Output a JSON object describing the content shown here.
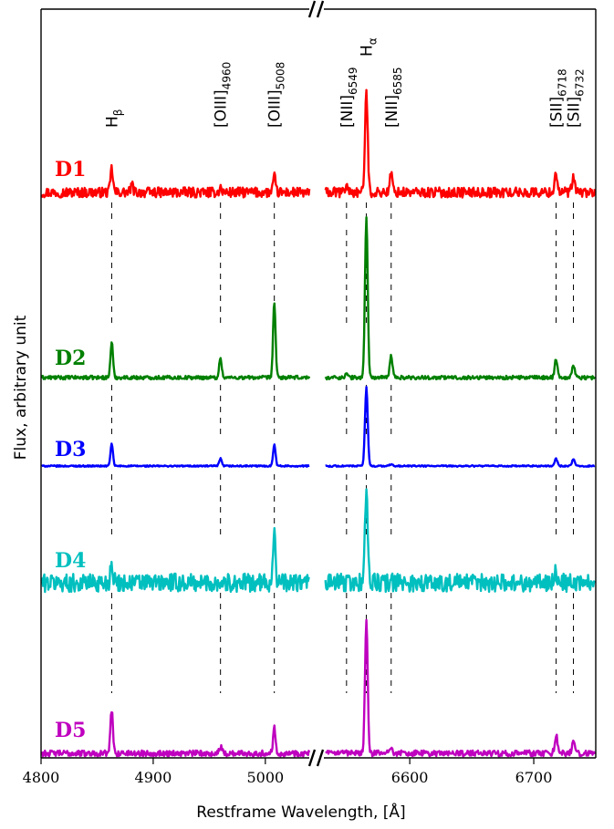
{
  "chart_data": {
    "type": "line",
    "xlabel": "Restframe Wavelength, [Å]",
    "ylabel": "Flux, arbitrary unit",
    "axis_break": true,
    "xlim_left": [
      4800,
      5040
    ],
    "xlim_right": [
      6530,
      6750
    ],
    "xticks": [
      {
        "value": 4800,
        "label": "4800"
      },
      {
        "value": 4900,
        "label": "4900"
      },
      {
        "value": 5000,
        "label": "5000"
      },
      {
        "value": 6600,
        "label": "6600"
      },
      {
        "value": 6700,
        "label": "6700"
      }
    ],
    "emission_lines": [
      {
        "name": "Hβ",
        "label_main": "H",
        "label_sub": "β",
        "wavelength": 4863
      },
      {
        "name": "[OIII]4960",
        "label_main": "[OIII]",
        "label_sub": "4960",
        "wavelength": 4960
      },
      {
        "name": "[OIII]5008",
        "label_main": "[OIII]",
        "label_sub": "5008",
        "wavelength": 5008
      },
      {
        "name": "[NII]6549",
        "label_main": "[NII]",
        "label_sub": "6549",
        "wavelength": 6549
      },
      {
        "name": "Hα",
        "label_main": "H",
        "label_sub": "α",
        "wavelength": 6565
      },
      {
        "name": "[NII]6585",
        "label_main": "[NII]",
        "label_sub": "6585",
        "wavelength": 6585
      },
      {
        "name": "[SII]6718",
        "label_main": "[SII]",
        "label_sub": "6718",
        "wavelength": 6718
      },
      {
        "name": "[SII]6732",
        "label_main": "[SII]",
        "label_sub": "6732",
        "wavelength": 6732
      }
    ],
    "series": [
      {
        "name": "D1",
        "color": "#ff0000",
        "noise": 0.55,
        "peaks": {
          "4863": 2.6,
          "4881": 0.8,
          "4960": 0.5,
          "5008": 1.7,
          "6549": 0.8,
          "6565": 10.8,
          "6585": 2.0,
          "6718": 2.2,
          "6732": 1.6
        }
      },
      {
        "name": "D2",
        "color": "#008000",
        "noise": 0.2,
        "peaks": {
          "4863": 3.9,
          "4960": 2.2,
          "5008": 8.3,
          "6549": 0.4,
          "6565": 17.6,
          "6585": 2.4,
          "6718": 2.1,
          "6732": 1.4
        }
      },
      {
        "name": "D3",
        "color": "#0000ff",
        "noise": 0.08,
        "peaks": {
          "4863": 2.4,
          "4960": 0.8,
          "5008": 2.4,
          "6565": 8.6,
          "6585": 0.2,
          "6718": 0.8,
          "6732": 0.7
        }
      },
      {
        "name": "D4",
        "color": "#00bfbf",
        "noise": 1.0,
        "peaks": {
          "4863": 2.3,
          "5008": 5.9,
          "6565": 10.3,
          "6718": 1.2
        }
      },
      {
        "name": "D5",
        "color": "#bf00bf",
        "noise": 0.32,
        "peaks": {
          "4863": 4.8,
          "4960": 0.8,
          "5008": 2.9,
          "6565": 14.3,
          "6585": 0.8,
          "6718": 2.0,
          "6732": 1.3
        }
      }
    ]
  }
}
